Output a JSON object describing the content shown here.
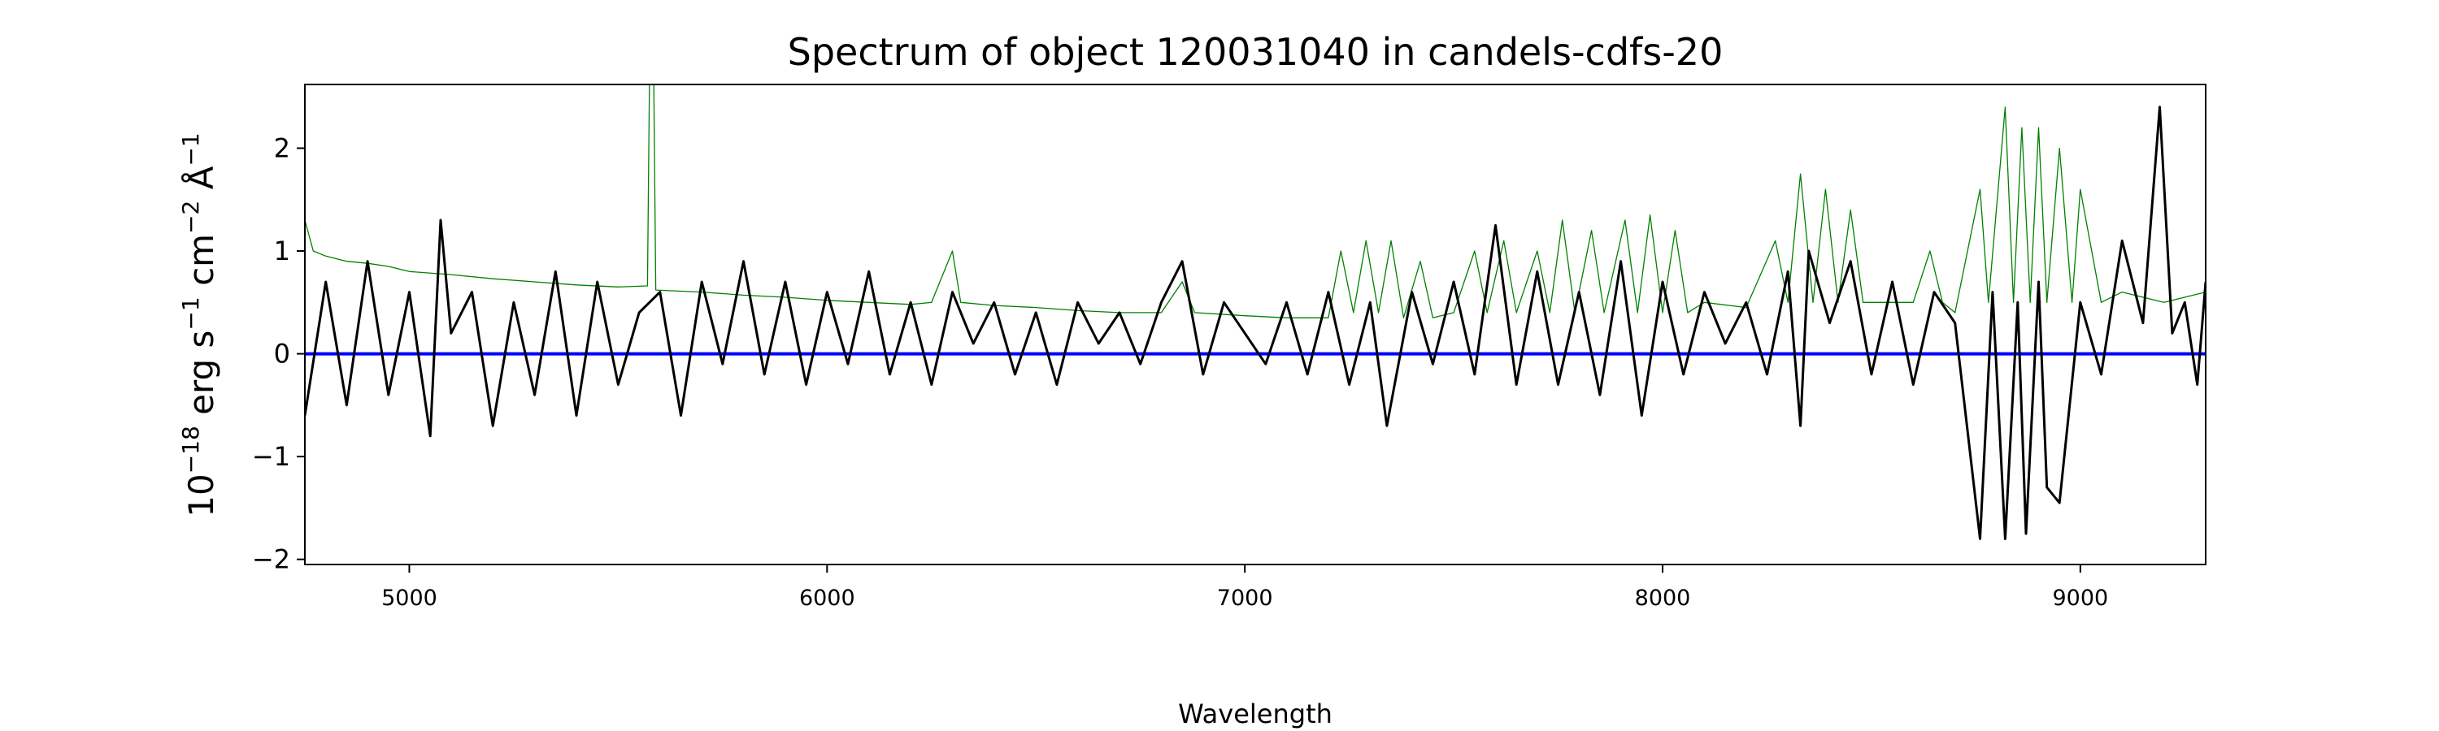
{
  "chart_data": {
    "type": "line",
    "title": "Spectrum of object 120031040 in candels-cdfs-20",
    "xlabel": "Wavelength",
    "ylabel": "10^{-18} erg s^{-1} cm^{-2} Å^{-1}",
    "ylabel_parts": {
      "base": "10",
      "exp1": "−18",
      "t1": " erg s",
      "exp2": "−1",
      "t2": " cm",
      "exp3": "−2",
      "t3": " Å",
      "exp4": "−1"
    },
    "xlim": [
      4750,
      9300
    ],
    "ylim": [
      -2.05,
      2.62
    ],
    "xticks": [
      5000,
      6000,
      7000,
      8000,
      9000
    ],
    "xtick_labels": [
      "5000",
      "6000",
      "7000",
      "8000",
      "9000"
    ],
    "yticks": [
      -2,
      -1,
      0,
      1,
      2
    ],
    "ytick_labels": [
      "−2",
      "−1",
      "0",
      "1",
      "2"
    ],
    "grid": false,
    "legend": "none",
    "series": [
      {
        "color": "#008000",
        "role": "error",
        "points": [
          [
            4750,
            1.3
          ],
          [
            4770,
            1.0
          ],
          [
            4800,
            0.95
          ],
          [
            4850,
            0.9
          ],
          [
            4900,
            0.88
          ],
          [
            4950,
            0.85
          ],
          [
            5000,
            0.8
          ],
          [
            5100,
            0.77
          ],
          [
            5200,
            0.73
          ],
          [
            5300,
            0.7
          ],
          [
            5400,
            0.67
          ],
          [
            5500,
            0.65
          ],
          [
            5570,
            0.66
          ],
          [
            5575,
            2.7
          ],
          [
            5585,
            2.7
          ],
          [
            5590,
            0.62
          ],
          [
            5700,
            0.6
          ],
          [
            5800,
            0.57
          ],
          [
            5900,
            0.55
          ],
          [
            6000,
            0.52
          ],
          [
            6100,
            0.5
          ],
          [
            6200,
            0.48
          ],
          [
            6250,
            0.5
          ],
          [
            6300,
            1.0
          ],
          [
            6320,
            0.5
          ],
          [
            6400,
            0.47
          ],
          [
            6500,
            0.45
          ],
          [
            6600,
            0.42
          ],
          [
            6700,
            0.4
          ],
          [
            6800,
            0.4
          ],
          [
            6850,
            0.7
          ],
          [
            6880,
            0.4
          ],
          [
            7000,
            0.37
          ],
          [
            7100,
            0.35
          ],
          [
            7200,
            0.35
          ],
          [
            7230,
            1.0
          ],
          [
            7260,
            0.4
          ],
          [
            7290,
            1.1
          ],
          [
            7320,
            0.4
          ],
          [
            7350,
            1.1
          ],
          [
            7380,
            0.35
          ],
          [
            7420,
            0.9
          ],
          [
            7450,
            0.35
          ],
          [
            7500,
            0.4
          ],
          [
            7550,
            1.0
          ],
          [
            7580,
            0.4
          ],
          [
            7620,
            1.1
          ],
          [
            7650,
            0.4
          ],
          [
            7700,
            1.0
          ],
          [
            7730,
            0.4
          ],
          [
            7760,
            1.3
          ],
          [
            7790,
            0.4
          ],
          [
            7830,
            1.2
          ],
          [
            7860,
            0.4
          ],
          [
            7910,
            1.3
          ],
          [
            7940,
            0.4
          ],
          [
            7970,
            1.35
          ],
          [
            8000,
            0.4
          ],
          [
            8030,
            1.2
          ],
          [
            8060,
            0.4
          ],
          [
            8100,
            0.5
          ],
          [
            8200,
            0.45
          ],
          [
            8270,
            1.1
          ],
          [
            8300,
            0.5
          ],
          [
            8330,
            1.75
          ],
          [
            8360,
            0.5
          ],
          [
            8390,
            1.6
          ],
          [
            8420,
            0.5
          ],
          [
            8450,
            1.4
          ],
          [
            8480,
            0.5
          ],
          [
            8550,
            0.5
          ],
          [
            8600,
            0.5
          ],
          [
            8640,
            1.0
          ],
          [
            8670,
            0.5
          ],
          [
            8700,
            0.4
          ],
          [
            8760,
            1.6
          ],
          [
            8780,
            0.5
          ],
          [
            8820,
            2.4
          ],
          [
            8840,
            0.5
          ],
          [
            8860,
            2.2
          ],
          [
            8880,
            0.5
          ],
          [
            8900,
            2.2
          ],
          [
            8920,
            0.5
          ],
          [
            8950,
            2.0
          ],
          [
            8980,
            0.5
          ],
          [
            9000,
            1.6
          ],
          [
            9050,
            0.5
          ],
          [
            9100,
            0.6
          ],
          [
            9200,
            0.5
          ],
          [
            9300,
            0.6
          ]
        ]
      },
      {
        "color": "#0000ff",
        "role": "zero",
        "points": [
          [
            4750,
            0
          ],
          [
            9300,
            0
          ]
        ]
      },
      {
        "color": "#000000",
        "role": "flux",
        "points": [
          [
            4750,
            -0.6
          ],
          [
            4800,
            0.7
          ],
          [
            4850,
            -0.5
          ],
          [
            4900,
            0.9
          ],
          [
            4950,
            -0.4
          ],
          [
            5000,
            0.6
          ],
          [
            5050,
            -0.8
          ],
          [
            5075,
            1.3
          ],
          [
            5100,
            0.2
          ],
          [
            5150,
            0.6
          ],
          [
            5200,
            -0.7
          ],
          [
            5250,
            0.5
          ],
          [
            5300,
            -0.4
          ],
          [
            5350,
            0.8
          ],
          [
            5400,
            -0.6
          ],
          [
            5450,
            0.7
          ],
          [
            5500,
            -0.3
          ],
          [
            5550,
            0.4
          ],
          [
            5600,
            0.6
          ],
          [
            5650,
            -0.6
          ],
          [
            5700,
            0.7
          ],
          [
            5750,
            -0.1
          ],
          [
            5800,
            0.9
          ],
          [
            5850,
            -0.2
          ],
          [
            5900,
            0.7
          ],
          [
            5950,
            -0.3
          ],
          [
            6000,
            0.6
          ],
          [
            6050,
            -0.1
          ],
          [
            6100,
            0.8
          ],
          [
            6150,
            -0.2
          ],
          [
            6200,
            0.5
          ],
          [
            6250,
            -0.3
          ],
          [
            6300,
            0.6
          ],
          [
            6350,
            0.1
          ],
          [
            6400,
            0.5
          ],
          [
            6450,
            -0.2
          ],
          [
            6500,
            0.4
          ],
          [
            6550,
            -0.3
          ],
          [
            6600,
            0.5
          ],
          [
            6650,
            0.1
          ],
          [
            6700,
            0.4
          ],
          [
            6750,
            -0.1
          ],
          [
            6800,
            0.5
          ],
          [
            6850,
            0.9
          ],
          [
            6900,
            -0.2
          ],
          [
            6950,
            0.5
          ],
          [
            7000,
            0.2
          ],
          [
            7050,
            -0.1
          ],
          [
            7100,
            0.5
          ],
          [
            7150,
            -0.2
          ],
          [
            7200,
            0.6
          ],
          [
            7250,
            -0.3
          ],
          [
            7300,
            0.5
          ],
          [
            7340,
            -0.7
          ],
          [
            7400,
            0.6
          ],
          [
            7450,
            -0.1
          ],
          [
            7500,
            0.7
          ],
          [
            7550,
            -0.2
          ],
          [
            7600,
            1.25
          ],
          [
            7650,
            -0.3
          ],
          [
            7700,
            0.8
          ],
          [
            7750,
            -0.3
          ],
          [
            7800,
            0.6
          ],
          [
            7850,
            -0.4
          ],
          [
            7900,
            0.9
          ],
          [
            7950,
            -0.6
          ],
          [
            8000,
            0.7
          ],
          [
            8050,
            -0.2
          ],
          [
            8100,
            0.6
          ],
          [
            8150,
            0.1
          ],
          [
            8200,
            0.5
          ],
          [
            8250,
            -0.2
          ],
          [
            8300,
            0.8
          ],
          [
            8330,
            -0.7
          ],
          [
            8350,
            1.0
          ],
          [
            8400,
            0.3
          ],
          [
            8450,
            0.9
          ],
          [
            8500,
            -0.2
          ],
          [
            8550,
            0.7
          ],
          [
            8600,
            -0.3
          ],
          [
            8650,
            0.6
          ],
          [
            8700,
            0.3
          ],
          [
            8760,
            -1.8
          ],
          [
            8790,
            0.6
          ],
          [
            8820,
            -1.8
          ],
          [
            8850,
            0.5
          ],
          [
            8870,
            -1.75
          ],
          [
            8900,
            0.7
          ],
          [
            8920,
            -1.3
          ],
          [
            8950,
            -1.45
          ],
          [
            9000,
            0.5
          ],
          [
            9050,
            -0.2
          ],
          [
            9100,
            1.1
          ],
          [
            9150,
            0.3
          ],
          [
            9190,
            2.4
          ],
          [
            9220,
            0.2
          ],
          [
            9250,
            0.5
          ],
          [
            9280,
            -0.3
          ],
          [
            9300,
            0.7
          ]
        ]
      }
    ]
  }
}
